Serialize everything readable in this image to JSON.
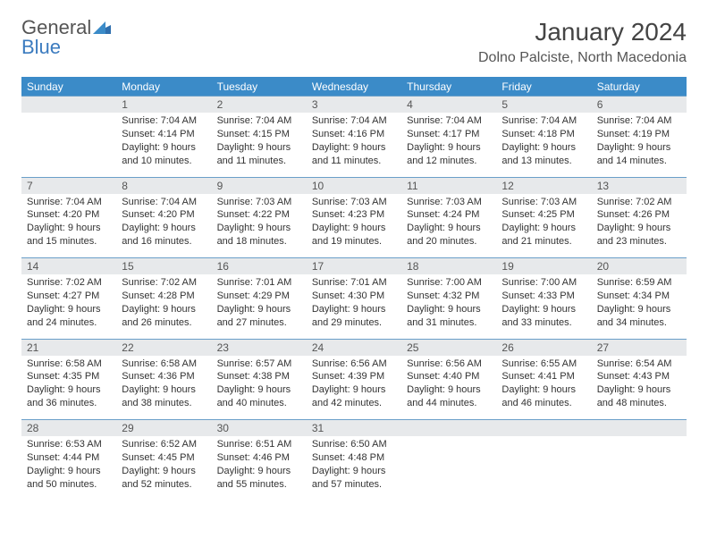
{
  "brand": {
    "part1": "General",
    "part2": "Blue"
  },
  "title": "January 2024",
  "location": "Dolno Palciste, North Macedonia",
  "colors": {
    "header_bg": "#3b8bc8",
    "header_text": "#ffffff",
    "daynum_bg": "#e7e9eb",
    "rule": "#6a9fc9",
    "brand_gray": "#555555",
    "brand_blue": "#3b7bbf"
  },
  "weekdays": [
    "Sunday",
    "Monday",
    "Tuesday",
    "Wednesday",
    "Thursday",
    "Friday",
    "Saturday"
  ],
  "weeks": [
    {
      "nums": [
        "",
        "1",
        "2",
        "3",
        "4",
        "5",
        "6"
      ],
      "cells": [
        "",
        "Sunrise: 7:04 AM\nSunset: 4:14 PM\nDaylight: 9 hours and 10 minutes.",
        "Sunrise: 7:04 AM\nSunset: 4:15 PM\nDaylight: 9 hours and 11 minutes.",
        "Sunrise: 7:04 AM\nSunset: 4:16 PM\nDaylight: 9 hours and 11 minutes.",
        "Sunrise: 7:04 AM\nSunset: 4:17 PM\nDaylight: 9 hours and 12 minutes.",
        "Sunrise: 7:04 AM\nSunset: 4:18 PM\nDaylight: 9 hours and 13 minutes.",
        "Sunrise: 7:04 AM\nSunset: 4:19 PM\nDaylight: 9 hours and 14 minutes."
      ]
    },
    {
      "nums": [
        "7",
        "8",
        "9",
        "10",
        "11",
        "12",
        "13"
      ],
      "cells": [
        "Sunrise: 7:04 AM\nSunset: 4:20 PM\nDaylight: 9 hours and 15 minutes.",
        "Sunrise: 7:04 AM\nSunset: 4:20 PM\nDaylight: 9 hours and 16 minutes.",
        "Sunrise: 7:03 AM\nSunset: 4:22 PM\nDaylight: 9 hours and 18 minutes.",
        "Sunrise: 7:03 AM\nSunset: 4:23 PM\nDaylight: 9 hours and 19 minutes.",
        "Sunrise: 7:03 AM\nSunset: 4:24 PM\nDaylight: 9 hours and 20 minutes.",
        "Sunrise: 7:03 AM\nSunset: 4:25 PM\nDaylight: 9 hours and 21 minutes.",
        "Sunrise: 7:02 AM\nSunset: 4:26 PM\nDaylight: 9 hours and 23 minutes."
      ]
    },
    {
      "nums": [
        "14",
        "15",
        "16",
        "17",
        "18",
        "19",
        "20"
      ],
      "cells": [
        "Sunrise: 7:02 AM\nSunset: 4:27 PM\nDaylight: 9 hours and 24 minutes.",
        "Sunrise: 7:02 AM\nSunset: 4:28 PM\nDaylight: 9 hours and 26 minutes.",
        "Sunrise: 7:01 AM\nSunset: 4:29 PM\nDaylight: 9 hours and 27 minutes.",
        "Sunrise: 7:01 AM\nSunset: 4:30 PM\nDaylight: 9 hours and 29 minutes.",
        "Sunrise: 7:00 AM\nSunset: 4:32 PM\nDaylight: 9 hours and 31 minutes.",
        "Sunrise: 7:00 AM\nSunset: 4:33 PM\nDaylight: 9 hours and 33 minutes.",
        "Sunrise: 6:59 AM\nSunset: 4:34 PM\nDaylight: 9 hours and 34 minutes."
      ]
    },
    {
      "nums": [
        "21",
        "22",
        "23",
        "24",
        "25",
        "26",
        "27"
      ],
      "cells": [
        "Sunrise: 6:58 AM\nSunset: 4:35 PM\nDaylight: 9 hours and 36 minutes.",
        "Sunrise: 6:58 AM\nSunset: 4:36 PM\nDaylight: 9 hours and 38 minutes.",
        "Sunrise: 6:57 AM\nSunset: 4:38 PM\nDaylight: 9 hours and 40 minutes.",
        "Sunrise: 6:56 AM\nSunset: 4:39 PM\nDaylight: 9 hours and 42 minutes.",
        "Sunrise: 6:56 AM\nSunset: 4:40 PM\nDaylight: 9 hours and 44 minutes.",
        "Sunrise: 6:55 AM\nSunset: 4:41 PM\nDaylight: 9 hours and 46 minutes.",
        "Sunrise: 6:54 AM\nSunset: 4:43 PM\nDaylight: 9 hours and 48 minutes."
      ]
    },
    {
      "nums": [
        "28",
        "29",
        "30",
        "31",
        "",
        "",
        ""
      ],
      "cells": [
        "Sunrise: 6:53 AM\nSunset: 4:44 PM\nDaylight: 9 hours and 50 minutes.",
        "Sunrise: 6:52 AM\nSunset: 4:45 PM\nDaylight: 9 hours and 52 minutes.",
        "Sunrise: 6:51 AM\nSunset: 4:46 PM\nDaylight: 9 hours and 55 minutes.",
        "Sunrise: 6:50 AM\nSunset: 4:48 PM\nDaylight: 9 hours and 57 minutes.",
        "",
        "",
        ""
      ]
    }
  ]
}
